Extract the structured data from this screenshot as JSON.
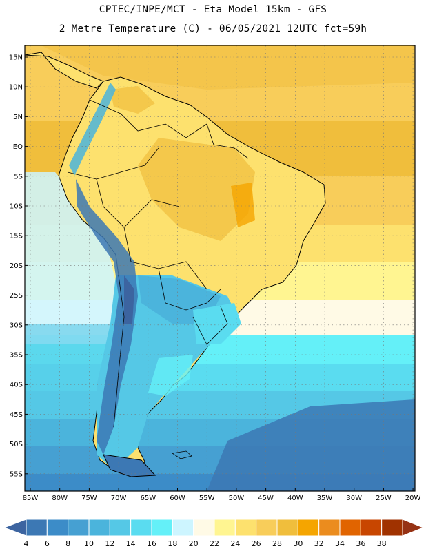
{
  "header": {
    "line1": "CPTEC/INPE/MCT -  Eta Model 15km - GFS",
    "line2": "2 Metre Temperature (C) - 06/05/2021 12UTC fct=59h"
  },
  "map": {
    "lat_labels": [
      "15N",
      "10N",
      "5N",
      "EQ",
      "5S",
      "10S",
      "15S",
      "20S",
      "25S",
      "30S",
      "35S",
      "40S",
      "45S",
      "50S",
      "55S"
    ],
    "lon_labels": [
      "85W",
      "80W",
      "75W",
      "70W",
      "65W",
      "60W",
      "55W",
      "50W",
      "45W",
      "40W",
      "35W",
      "30W",
      "25W",
      "20W"
    ],
    "grid": "dotted"
  },
  "colorbar": {
    "levels": [
      "4",
      "6",
      "8",
      "10",
      "12",
      "14",
      "16",
      "18",
      "20",
      "22",
      "24",
      "26",
      "28",
      "30",
      "32",
      "34",
      "36",
      "38"
    ],
    "colors": [
      "#3c78b4",
      "#3c8cc8",
      "#46a0d2",
      "#4bb4dc",
      "#55c8e6",
      "#5adcf0",
      "#64f0f8",
      "#cdf5ff",
      "#fffae6",
      "#fff591",
      "#fde16e",
      "#f8cd5a",
      "#f0be3c",
      "#f5a500",
      "#eb8c1e",
      "#e16400",
      "#c84600",
      "#a03200"
    ],
    "low_color": "#3c64a0",
    "high_color": "#963214"
  }
}
